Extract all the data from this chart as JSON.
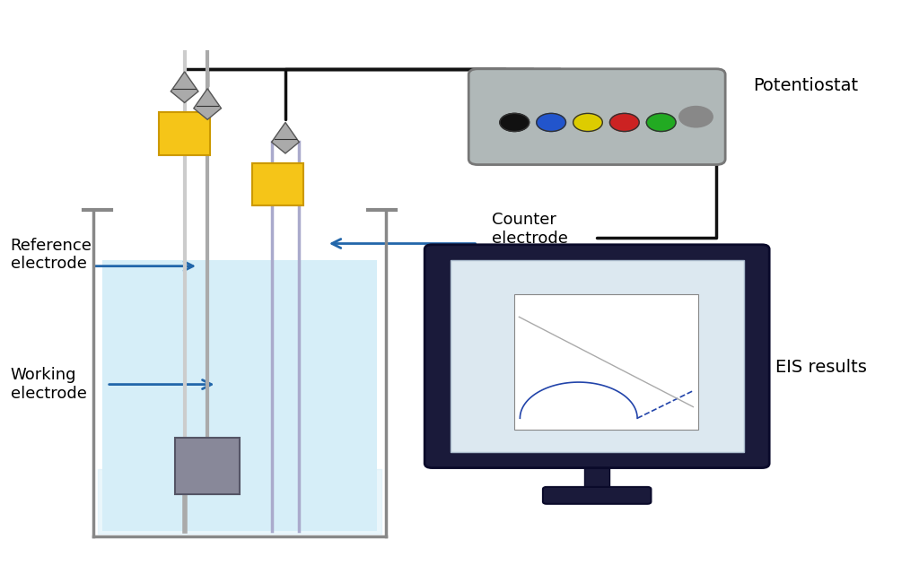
{
  "title": "",
  "labels": {
    "potentiostat": "Potentiostat",
    "eis_results": "EIS results",
    "reference_electrode": "Reference\nelectrode",
    "working_electrode": "Working\nelectrode",
    "counter_electrode": "Counter\nelectrode"
  },
  "colors": {
    "background_color": "#ffffff",
    "beaker_fill": "#d6eef8",
    "beaker_border": "#888888",
    "yellow_block": "#f5c518",
    "blue_tube": "#6699cc",
    "gray_electrode": "#999999",
    "dark_gray": "#555555",
    "wire_color": "#111111",
    "potentiostat_body": "#aaaaaa",
    "monitor_body": "#222244",
    "monitor_screen": "#e8f0ff",
    "arrow_color": "#2266aa",
    "text_color": "#000000"
  },
  "fontsize": 13
}
